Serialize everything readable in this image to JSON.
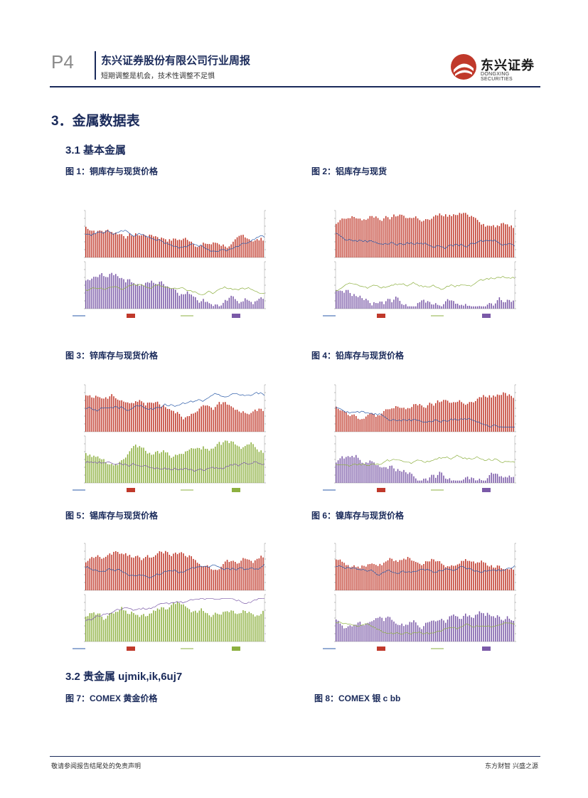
{
  "header": {
    "page_number": "P4",
    "company_title": "东兴证券股份有限公司行业周报",
    "subtitle": "短期调整是机会，技术性调整不足惧",
    "logo_cn": "东兴证券",
    "logo_en": "DONGXING SECURITIES"
  },
  "section": {
    "title": "3．金属数据表",
    "sub1": "3.1  基本金属",
    "sub2": "3.2  贵金属 ujmik,ik,6uj7"
  },
  "figures": [
    {
      "caption": "图 1：铜库存与现货价格",
      "upper": "bar-line",
      "lower": "bar-line",
      "lowerColor": "#7b5aa8"
    },
    {
      "caption": "图 2：铝库存与现货",
      "upper": "bar-line",
      "lower": "bar-line",
      "lowerColor": "#7b5aa8"
    },
    {
      "caption": "图 3：锌库存与现货价格",
      "upper": "bar-line",
      "lower": "bar-line",
      "lowerColor": "#8db040"
    },
    {
      "caption": "图 4：铅库存与现货价格",
      "upper": "bar-line",
      "lower": "bar-line",
      "lowerColor": "#7b5aa8"
    },
    {
      "caption": "图 5：锡库存与现货价格",
      "upper": "bar-line",
      "lower": "bar-line",
      "lowerColor": "#8db040"
    },
    {
      "caption": "图 6：镍库存与现货价格",
      "upper": "bar-line",
      "lower": "bar-line",
      "lowerColor": "#7b5aa8"
    }
  ],
  "precious": [
    {
      "caption": "图 7：COMEX 黄金价格"
    },
    {
      "caption": "图 8：COMEX 银 c        bb"
    }
  ],
  "footer": {
    "left": "敬请参阅报告结尾处的免责声明",
    "right": "东方财智 兴盛之源"
  },
  "colors": {
    "navy": "#1a2a5a",
    "bar_red": "#c0392b",
    "line_blue": "#2a5aa8",
    "line_green": "#8db040"
  }
}
